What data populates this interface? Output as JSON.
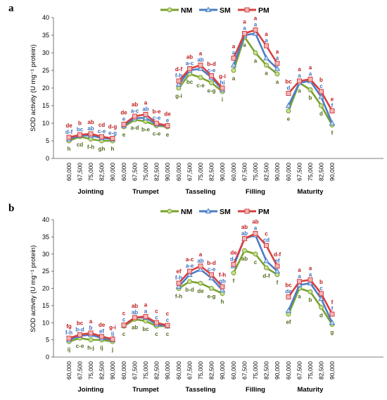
{
  "colors": {
    "NM": "#7aa22e",
    "NM_marker_fill": "#c9dd96",
    "SM": "#4a7ec6",
    "SM_marker_fill": "#c8d9f0",
    "PM": "#d84040",
    "PM_marker_fill": "#f3b8b8",
    "label_NM": "#4f6a1c",
    "label_SM": "#3a6fc0",
    "label_PM": "#c01818"
  },
  "chart_data": [
    {
      "panel": "a",
      "type": "line",
      "ylabel": "SOD activity (U mg⁻¹ protein)",
      "ylim": [
        0,
        40
      ],
      "yticks": [
        0,
        5,
        10,
        15,
        20,
        25,
        30,
        35,
        40
      ],
      "legend": [
        "NM",
        "SM",
        "PM"
      ],
      "legend_position": "top-center",
      "x_ticks": [
        "60,000",
        "67,500",
        "75,000",
        "82,500",
        "90,000"
      ],
      "groups": [
        "Jointing",
        "Trumpet",
        "Tasseling",
        "Filling",
        "Maturity"
      ],
      "series": [
        {
          "name": "NM",
          "values": [
            [
              5.0,
              6.2,
              5.5,
              5.0,
              5.0
            ],
            [
              9.0,
              11.0,
              10.5,
              9.3,
              9.0
            ],
            [
              20.0,
              24.0,
              23.0,
              21.5,
              19.0
            ],
            [
              25.0,
              34.5,
              30.0,
              26.5,
              24.0
            ],
            [
              13.5,
              21.5,
              19.5,
              15.0,
              9.5
            ]
          ]
        },
        {
          "name": "SM",
          "values": [
            [
              5.5,
              6.5,
              6.5,
              5.8,
              5.5
            ],
            [
              9.3,
              11.5,
              11.5,
              9.7,
              9.2
            ],
            [
              21.0,
              25.0,
              25.5,
              23.0,
              19.5
            ],
            [
              26.5,
              35.0,
              35.5,
              28.5,
              25.5
            ],
            [
              15.0,
              21.5,
              22.0,
              17.5,
              10.0
            ]
          ]
        },
        {
          "name": "PM",
          "values": [
            [
              6.0,
              6.7,
              7.0,
              6.2,
              5.7
            ],
            [
              9.7,
              12.0,
              12.5,
              10.0,
              9.3
            ],
            [
              22.0,
              25.5,
              26.5,
              23.5,
              20.0
            ],
            [
              28.5,
              35.5,
              36.5,
              32.0,
              27.0
            ],
            [
              18.5,
              22.0,
              22.5,
              19.0,
              13.5
            ]
          ]
        }
      ],
      "labels": [
        {
          "PM": [
            "de",
            "b",
            "ab",
            "cd",
            "d-g"
          ],
          "SM": [
            "d-f",
            "bc",
            "ab",
            "c-e",
            "e-g"
          ],
          "NM": [
            "h",
            "cd",
            "f-h",
            "gh",
            "h"
          ]
        },
        {
          "PM": [
            "de",
            "ab",
            "a",
            "b-e",
            "de"
          ],
          "SM": [
            "e",
            "a-c",
            "ab",
            "c-e",
            "e"
          ],
          "NM": [
            "e",
            "a-d",
            "b-e",
            "c-e",
            "e"
          ]
        },
        {
          "PM": [
            "d-f",
            "ab",
            "a",
            "b-d",
            "g-i"
          ],
          "SM": [
            "f-h",
            "a-c",
            "ab",
            "c-e",
            "hi"
          ],
          "NM": [
            "g-i",
            "bc",
            "c-e",
            "e-g",
            "i"
          ]
        },
        {
          "PM": [
            "a",
            "a",
            "a",
            "a",
            "a"
          ],
          "SM": [
            "a",
            "a",
            "a",
            "a",
            "a"
          ],
          "NM": [
            "a",
            "a",
            "a",
            "a",
            "a"
          ]
        },
        {
          "PM": [
            "bc",
            "a",
            "a",
            "b",
            "e"
          ],
          "SM": [
            "d",
            "a",
            "a",
            "c",
            "f"
          ],
          "NM": [
            "e",
            "a",
            "b",
            "d",
            "f"
          ]
        }
      ]
    },
    {
      "panel": "b",
      "type": "line",
      "ylabel": "SOD activity (U mg⁻¹ protein)",
      "ylim": [
        0,
        40
      ],
      "yticks": [
        0,
        5,
        10,
        15,
        20,
        25,
        30,
        35,
        40
      ],
      "legend": [
        "NM",
        "SM",
        "PM"
      ],
      "legend_position": "top-center",
      "x_ticks": [
        "60,000",
        "67,500",
        "75,000",
        "82,500",
        "90,000"
      ],
      "groups": [
        "Jointing",
        "Trumpet",
        "Tasseling",
        "Filling",
        "Maturity"
      ],
      "series": [
        {
          "name": "NM",
          "values": [
            [
              4.5,
              5.5,
              5.0,
              5.0,
              4.5
            ],
            [
              9.0,
              11.0,
              10.5,
              9.0,
              9.0
            ],
            [
              20.0,
              22.0,
              21.5,
              20.0,
              18.5
            ],
            [
              24.5,
              31.0,
              30.0,
              26.0,
              24.0
            ],
            [
              12.5,
              20.0,
              19.0,
              14.5,
              9.5
            ]
          ]
        },
        {
          "name": "SM",
          "values": [
            [
              5.0,
              6.2,
              6.5,
              5.5,
              5.0
            ],
            [
              9.2,
              11.5,
              11.5,
              9.5,
              9.0
            ],
            [
              20.5,
              24.0,
              25.5,
              23.0,
              19.5
            ],
            [
              26.5,
              34.5,
              35.5,
              28.0,
              25.0
            ],
            [
              13.5,
              21.0,
              21.5,
              17.0,
              10.0
            ]
          ]
        },
        {
          "name": "PM",
          "values": [
            [
              5.5,
              6.5,
              7.0,
              6.0,
              5.2
            ],
            [
              9.3,
              11.5,
              11.8,
              10.0,
              9.2
            ],
            [
              21.5,
              25.0,
              26.5,
              24.0,
              20.5
            ],
            [
              27.0,
              34.5,
              36.0,
              32.5,
              26.5
            ],
            [
              17.5,
              22.0,
              22.5,
              18.5,
              12.5
            ]
          ]
        }
      ],
      "labels": [
        {
          "PM": [
            "fg",
            "bc",
            "a",
            "de",
            "g-i"
          ],
          "SM": [
            "f-h",
            "b-d",
            "b",
            "ef",
            "ij"
          ],
          "NM": [
            "ij",
            "c-e",
            "h-j",
            "ij",
            "j"
          ]
        },
        {
          "PM": [
            "c",
            "ab",
            "a",
            "c",
            "c"
          ],
          "SM": [
            "c",
            "ab",
            "a",
            "c",
            "c"
          ],
          "NM": [
            "c",
            "ab",
            "bc",
            "c",
            "c"
          ]
        },
        {
          "PM": [
            "ef",
            "a-c",
            "a",
            "b-d",
            "f-h"
          ],
          "SM": [
            "f-h",
            "a-e",
            "ab",
            "c-e",
            "gh"
          ],
          "NM": [
            "f-h",
            "b-d",
            "de",
            "e-g",
            "h"
          ]
        },
        {
          "PM": [
            "de",
            "ab",
            "ab",
            "c",
            "d-f"
          ],
          "SM": [
            "d-f",
            "ab",
            "a",
            "cd",
            "ef"
          ],
          "NM": [
            "f",
            "ab",
            "c",
            "d-f",
            "f"
          ]
        },
        {
          "PM": [
            "bc",
            "a",
            "a",
            "b",
            "f"
          ],
          "SM": [
            "de",
            "a",
            "a",
            "c",
            "f"
          ],
          "NM": [
            "ef",
            "a",
            "b",
            "d",
            "g"
          ]
        }
      ]
    }
  ]
}
